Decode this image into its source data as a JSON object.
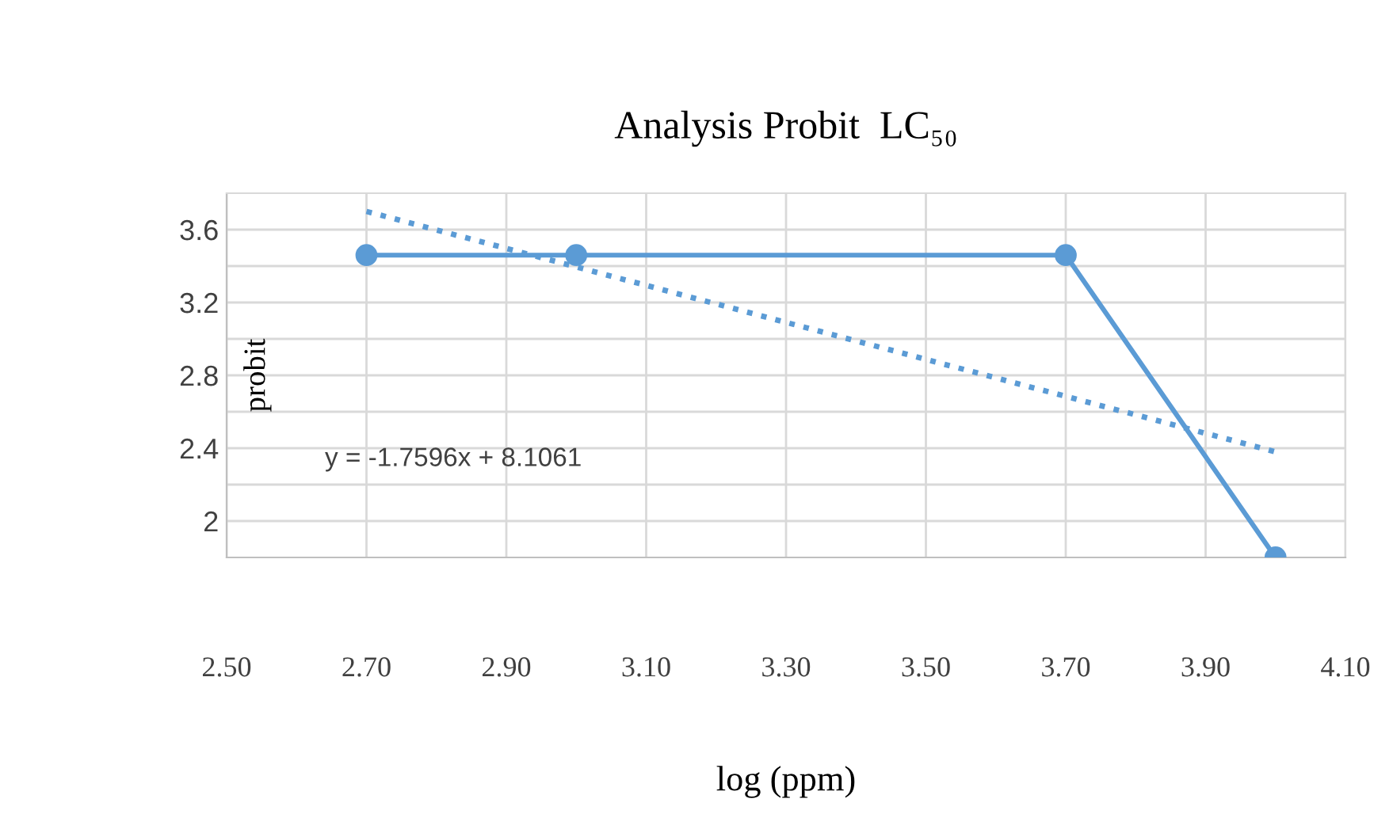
{
  "chart_data": {
    "type": "line",
    "title": "Analysis Probit  LC₅₀",
    "xlabel": "log (ppm)",
    "ylabel": "probit",
    "annotations": [
      "y = -1.7596x + 8.1061"
    ],
    "x": [
      2.7,
      3.0,
      3.7,
      4.0
    ],
    "series": [
      {
        "color": "#5b9bd5",
        "values": [
          3.46,
          3.46,
          3.46,
          1.8
        ],
        "marker": "circle",
        "line_style": "solid"
      },
      {
        "type": "line",
        "x": [
          2.7,
          4.0
        ],
        "color": "#5b9bd5",
        "values": [
          3.7,
          2.38
        ],
        "marker": "none",
        "line_style": "dotted"
      }
    ],
    "xlim": [
      2.5,
      4.1
    ],
    "ylim": [
      1.8,
      3.8
    ],
    "xticks": [
      {
        "value": 2.5,
        "label": "2.50"
      },
      {
        "value": 2.7,
        "label": "2.70"
      },
      {
        "value": 2.9,
        "label": "2.90"
      },
      {
        "value": 3.1,
        "label": "3.10"
      },
      {
        "value": 3.3,
        "label": "3.30"
      },
      {
        "value": 3.5,
        "label": "3.50"
      },
      {
        "value": 3.7,
        "label": "3.70"
      },
      {
        "value": 3.9,
        "label": "3.90"
      },
      {
        "value": 4.1,
        "label": "4.10"
      }
    ],
    "yticks": [
      2,
      {
        "value": 2.2,
        "label": null
      },
      2.4,
      {
        "value": 2.6,
        "label": null
      },
      2.8,
      {
        "value": 3.0,
        "label": null
      },
      3.2,
      {
        "value": 3.4,
        "label": null
      },
      3.6
    ],
    "grid": true,
    "legend": false
  }
}
